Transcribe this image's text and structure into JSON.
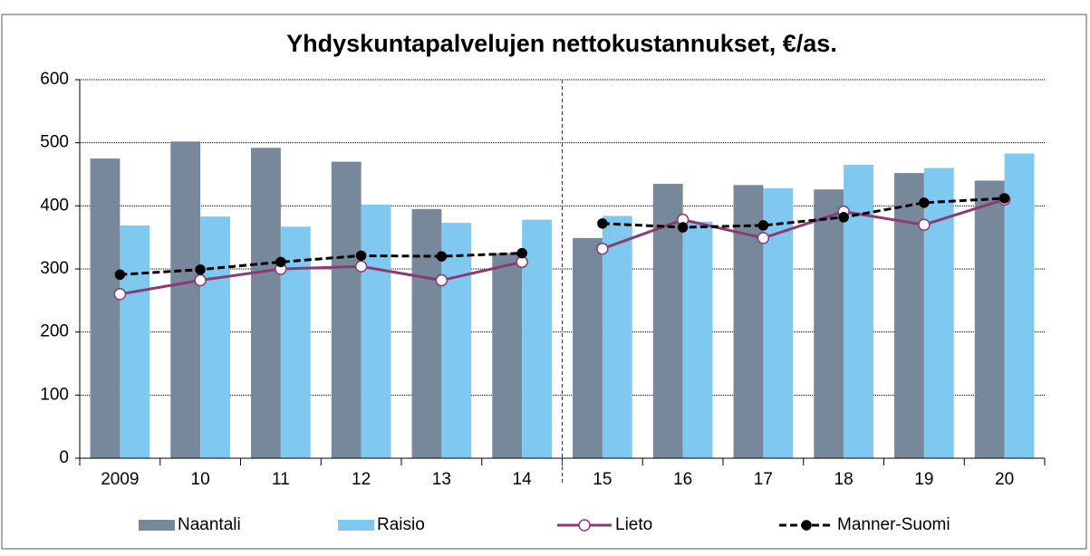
{
  "chart_data": {
    "type": "bar",
    "title": "Yhdyskuntapalvelujen nettokustannukset, €/as.",
    "categories": [
      "2009",
      "10",
      "11",
      "12",
      "13",
      "14",
      "15",
      "16",
      "17",
      "18",
      "19",
      "20"
    ],
    "series": [
      {
        "name": "Naantali",
        "type": "bar",
        "color": "#77889a",
        "values": [
          475,
          502,
          492,
          470,
          395,
          325,
          349,
          435,
          433,
          426,
          452,
          440
        ]
      },
      {
        "name": "Raisio",
        "type": "bar",
        "color": "#7fc8f0",
        "values": [
          369,
          383,
          367,
          402,
          373,
          378,
          384,
          375,
          428,
          465,
          460,
          483
        ]
      },
      {
        "name": "Lieto",
        "type": "line",
        "color": "#8b3a73",
        "marker": "open",
        "values": [
          260,
          282,
          300,
          304,
          282,
          311,
          332,
          378,
          349,
          391,
          370,
          410
        ]
      },
      {
        "name": "Manner-Suomi",
        "type": "line",
        "color": "#000000",
        "marker": "filled",
        "dashed": true,
        "values": [
          291,
          299,
          311,
          321,
          320,
          325,
          372,
          366,
          369,
          382,
          405,
          412
        ]
      }
    ],
    "break_before": 6,
    "ylim": [
      0,
      600
    ],
    "yticks": [
      0,
      100,
      200,
      300,
      400,
      500,
      600
    ],
    "grid": true
  }
}
